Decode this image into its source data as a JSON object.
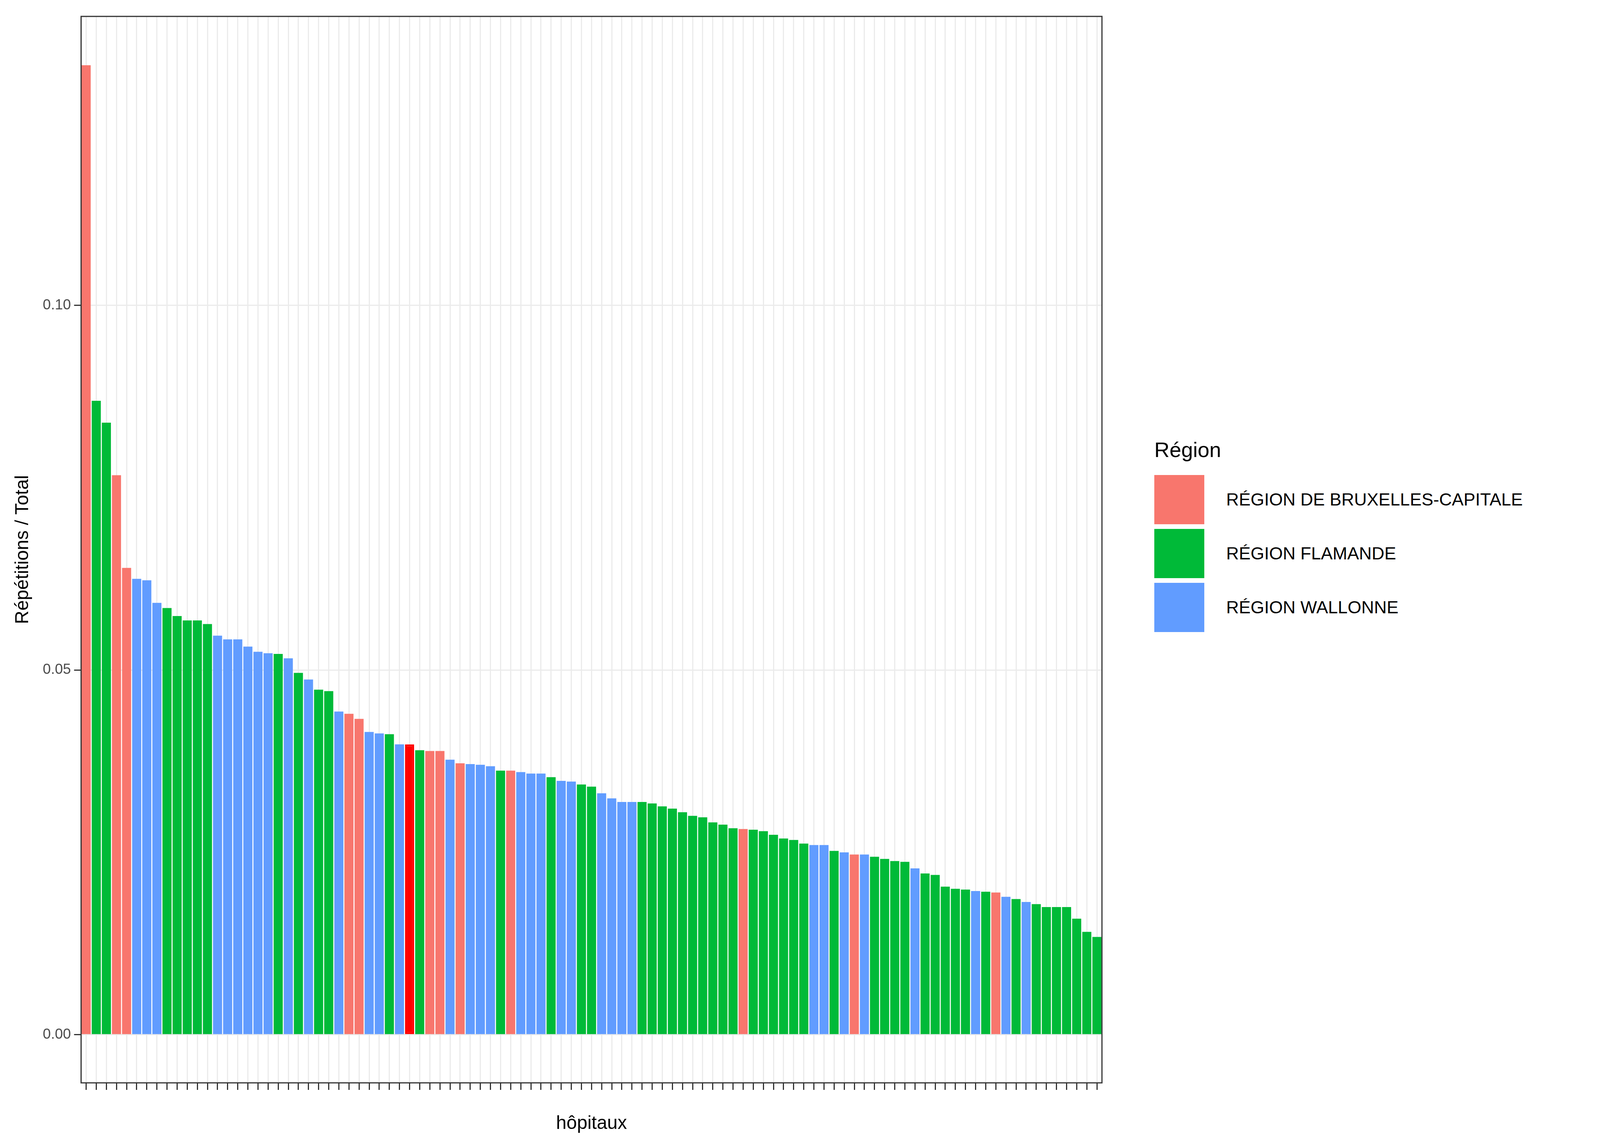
{
  "chart_data": {
    "type": "bar",
    "x_label": "hôpitaux",
    "y_label": "Répétitions / Total",
    "legend_title": "Région",
    "legend": "right",
    "grid": true,
    "tick_labels": "y",
    "ylim": [
      -0.0066,
      0.1396
    ],
    "yticks": [
      {
        "value": 0,
        "label": "0.00"
      },
      {
        "value": 0.05,
        "label": "0.05"
      },
      {
        "value": 0.1,
        "label": "0.10"
      }
    ],
    "categories": [
      null,
      null,
      null,
      null,
      null,
      null,
      null,
      null,
      null,
      null,
      null,
      null,
      null,
      null,
      null,
      null,
      null,
      null,
      null,
      null,
      null,
      null,
      null,
      null,
      null,
      null,
      null,
      null,
      null,
      null,
      null,
      null,
      null,
      null,
      null,
      null,
      null,
      null,
      null,
      null,
      null,
      null,
      null,
      null,
      null,
      null,
      null,
      null,
      null,
      null,
      null,
      null,
      null,
      null,
      null,
      null,
      null,
      null,
      null,
      null,
      null,
      null,
      null,
      null,
      null,
      null,
      null,
      null,
      null,
      null,
      null,
      null,
      null,
      null,
      null,
      null,
      null,
      null,
      null,
      null,
      null,
      null,
      null,
      null,
      null,
      null,
      null,
      null,
      null,
      null,
      null,
      null,
      null,
      null,
      null,
      null,
      null,
      null,
      null,
      null,
      null
    ],
    "series": [
      {
        "name": "RÉGION DE BRUXELLES-CAPITALE",
        "color": "#F8766D",
        "values": [
          0.1329,
          null,
          null,
          0.0767,
          0.064,
          null,
          null,
          null,
          null,
          null,
          null,
          null,
          null,
          null,
          null,
          null,
          null,
          null,
          null,
          null,
          null,
          null,
          null,
          null,
          null,
          null,
          0.044,
          0.0433,
          null,
          null,
          null,
          null,
          null,
          null,
          0.0389,
          0.0389,
          null,
          0.0372,
          null,
          null,
          null,
          null,
          0.0362,
          null,
          null,
          null,
          null,
          null,
          null,
          null,
          null,
          null,
          null,
          null,
          null,
          null,
          null,
          null,
          null,
          null,
          null,
          null,
          null,
          null,
          null,
          0.0282,
          null,
          null,
          null,
          null,
          null,
          null,
          null,
          null,
          null,
          null,
          0.0247,
          null,
          null,
          null,
          null,
          null,
          null,
          null,
          null,
          null,
          null,
          null,
          null,
          null,
          0.0195,
          null,
          null,
          null,
          null,
          null,
          null,
          null,
          null,
          null,
          null
        ]
      },
      {
        "name": "RÉGION FLAMANDE",
        "color": "#00BA38",
        "values": [
          null,
          0.0869,
          0.0839,
          null,
          null,
          null,
          null,
          null,
          0.0585,
          0.0574,
          0.0568,
          0.0568,
          0.0563,
          null,
          null,
          null,
          null,
          null,
          null,
          0.0522,
          null,
          0.0496,
          null,
          0.0473,
          0.0471,
          null,
          null,
          null,
          null,
          null,
          0.0412,
          null,
          null,
          0.039,
          null,
          null,
          null,
          null,
          null,
          null,
          null,
          0.0362,
          null,
          null,
          null,
          null,
          0.0353,
          null,
          null,
          0.0343,
          0.034,
          null,
          null,
          null,
          null,
          0.0319,
          0.0317,
          0.0313,
          0.031,
          0.0305,
          0.03,
          0.0298,
          0.0291,
          0.0288,
          0.0283,
          null,
          0.0281,
          0.0279,
          0.0274,
          0.0269,
          0.0267,
          0.0262,
          null,
          null,
          0.0252,
          null,
          null,
          null,
          0.0244,
          0.0241,
          0.0238,
          0.0237,
          null,
          0.0221,
          0.0219,
          0.0203,
          0.02,
          0.0199,
          null,
          0.0196,
          null,
          null,
          0.0186,
          null,
          0.0179,
          0.0175,
          0.0175,
          0.0175,
          0.0159,
          0.0141,
          0.0134
        ]
      },
      {
        "name": "RÉGION WALLONNE",
        "color": "#619CFF",
        "values": [
          null,
          null,
          null,
          null,
          null,
          0.0625,
          0.0623,
          0.0592,
          null,
          null,
          null,
          null,
          null,
          0.0547,
          0.0542,
          0.0542,
          0.0532,
          0.0525,
          0.0523,
          null,
          0.0516,
          null,
          0.0487,
          null,
          null,
          0.0443,
          null,
          null,
          0.0415,
          0.0413,
          null,
          0.0398,
          null,
          null,
          null,
          null,
          0.0377,
          null,
          0.0371,
          0.037,
          0.0368,
          null,
          null,
          0.036,
          0.0358,
          0.0358,
          null,
          0.0348,
          0.0347,
          null,
          null,
          0.0331,
          0.0324,
          0.0319,
          0.0319,
          null,
          null,
          null,
          null,
          null,
          null,
          null,
          null,
          null,
          null,
          null,
          null,
          null,
          null,
          null,
          null,
          null,
          0.026,
          0.026,
          null,
          0.025,
          null,
          0.0247,
          null,
          null,
          null,
          null,
          0.0228,
          null,
          null,
          null,
          null,
          null,
          0.0197,
          null,
          null,
          0.0189,
          null,
          0.0182,
          null,
          null,
          null,
          null,
          null,
          null,
          null
        ]
      },
      {
        "color": "#FF0000",
        "values": [
          null,
          null,
          null,
          null,
          null,
          null,
          null,
          null,
          null,
          null,
          null,
          null,
          null,
          null,
          null,
          null,
          null,
          null,
          null,
          null,
          null,
          null,
          null,
          null,
          null,
          null,
          null,
          null,
          null,
          null,
          null,
          null,
          0.0398,
          null,
          null,
          null,
          null,
          null,
          null,
          null,
          null,
          null,
          null,
          null,
          null,
          null,
          null,
          null,
          null,
          null,
          null,
          null,
          null,
          null,
          null,
          null,
          null,
          null,
          null,
          null,
          null,
          null,
          null,
          null,
          null,
          null,
          null,
          null,
          null,
          null,
          null,
          null,
          null,
          null,
          null,
          null,
          null,
          null,
          null,
          null,
          null,
          null,
          null,
          null,
          null,
          null,
          null,
          null,
          null,
          null,
          null,
          null,
          null,
          null,
          null,
          null,
          null,
          null,
          null,
          null,
          null
        ]
      }
    ]
  }
}
